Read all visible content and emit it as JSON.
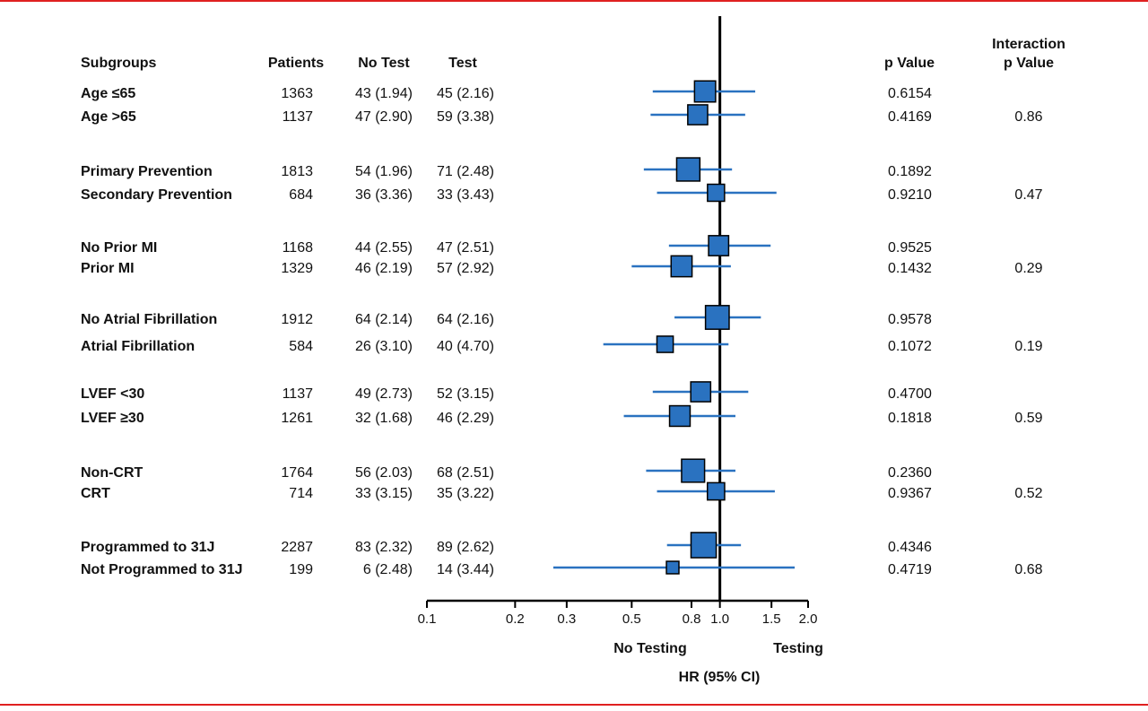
{
  "chart_data": {
    "type": "forest",
    "headers": {
      "subgroups": "Subgroups",
      "patients": "Patients",
      "no_test": "No Test",
      "test": "Test",
      "p": "p Value",
      "interaction": [
        "Interaction",
        "p Value"
      ]
    },
    "xlim": [
      0.1,
      2
    ],
    "log_x": true,
    "xticks": [
      0.1,
      0.2,
      0.3,
      0.5,
      0.8,
      {
        "value": 1,
        "label": "1.0"
      },
      1.5,
      {
        "value": 2,
        "label": "2.0"
      }
    ],
    "reference": 1,
    "color": "#2a72c0",
    "left_label": "No Testing",
    "right_label": "Testing",
    "xlabel": "HR (95% CI)",
    "groups": [
      {
        "interaction": 0.86,
        "rows": [
          {
            "label": "Age ≤65",
            "patients": 1363,
            "no_test": "43 (1.94)",
            "test": "45  (2.16)",
            "hr": 0.89,
            "ci": [
              0.59,
              1.32
            ],
            "p": "0.6154"
          },
          {
            "label": "Age >65",
            "patients": 1137,
            "no_test": "47 (2.90)",
            "test": "59 (3.38)",
            "hr": 0.84,
            "ci": [
              0.58,
              1.22
            ],
            "p": "0.4169"
          }
        ]
      },
      {
        "interaction": 0.47,
        "rows": [
          {
            "label": "Primary Prevention",
            "patients": 1813,
            "no_test": "54 (1.96)",
            "test": "71 (2.48)",
            "hr": 0.78,
            "ci": [
              0.55,
              1.1
            ],
            "p": "0.1892"
          },
          {
            "label": "Secondary Prevention",
            "patients": 684,
            "no_test": "36 (3.36)",
            "test": "33 (3.43)",
            "hr": 0.97,
            "ci": [
              0.61,
              1.56
            ],
            "p": "0.9210"
          }
        ]
      },
      {
        "interaction": 0.29,
        "rows": [
          {
            "label": "No Prior MI",
            "patients": 1168,
            "no_test": "44 (2.55)",
            "test": "47 (2.51)",
            "hr": 0.99,
            "ci": [
              0.67,
              1.49
            ],
            "p": "0.9525"
          },
          {
            "label": "Prior MI",
            "patients": 1329,
            "no_test": "46 (2.19)",
            "test": "57 (2.92)",
            "hr": 0.74,
            "ci": [
              0.5,
              1.09
            ],
            "p": "0.1432"
          }
        ]
      },
      {
        "interaction": 0.19,
        "rows": [
          {
            "label": "No Atrial Fibrillation",
            "patients": 1912,
            "no_test": "64 (2.14)",
            "test": "64 (2.16)",
            "hr": 0.98,
            "ci": [
              0.7,
              1.38
            ],
            "p": "0.9578"
          },
          {
            "label": "Atrial Fibrillation",
            "patients": 584,
            "no_test": "26 (3.10)",
            "test": "40 (4.70)",
            "hr": 0.65,
            "ci": [
              0.4,
              1.07
            ],
            "p": "0.1072"
          }
        ]
      },
      {
        "interaction": 0.59,
        "rows": [
          {
            "label": "LVEF <30",
            "patients": 1137,
            "no_test": "49 (2.73)",
            "test": "52 (3.15)",
            "hr": 0.86,
            "ci": [
              0.59,
              1.25
            ],
            "p": "0.4700"
          },
          {
            "label": "LVEF ≥30",
            "patients": 1261,
            "no_test": "32 (1.68)",
            "test": "46 (2.29)",
            "hr": 0.73,
            "ci": [
              0.47,
              1.13
            ],
            "p": "0.1818"
          }
        ]
      },
      {
        "interaction": 0.52,
        "rows": [
          {
            "label": "Non-CRT",
            "patients": 1764,
            "no_test": "56 (2.03)",
            "test": "68 (2.51)",
            "hr": 0.81,
            "ci": [
              0.56,
              1.13
            ],
            "p": "0.2360"
          },
          {
            "label": "CRT",
            "patients": 714,
            "no_test": "33 (3.15)",
            "test": "35 (3.22)",
            "hr": 0.97,
            "ci": [
              0.61,
              1.54
            ],
            "p": "0.9367"
          }
        ]
      },
      {
        "interaction": 0.68,
        "rows": [
          {
            "label": "Programmed to 31J",
            "patients": 2287,
            "no_test": "83 (2.32)",
            "test": "89 (2.62)",
            "hr": 0.88,
            "ci": [
              0.66,
              1.18
            ],
            "p": "0.4346"
          },
          {
            "label": "Not Programmed to 31J",
            "patients": 199,
            "no_test": "6 (2.48)",
            "test": "14 (3.44)",
            "hr": 0.69,
            "ci": [
              0.27,
              1.8
            ],
            "p": "0.4719"
          }
        ]
      }
    ]
  }
}
